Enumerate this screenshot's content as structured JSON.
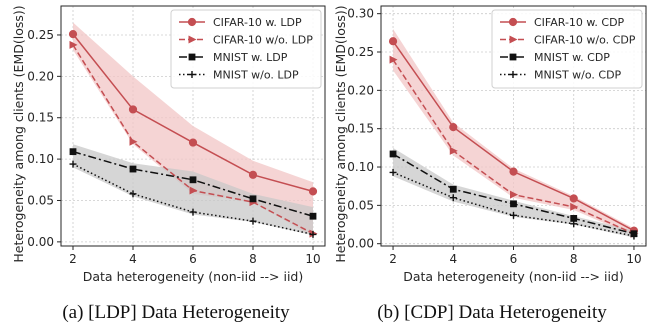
{
  "captions": [
    "(a) [LDP] Data Heterogeneity",
    "(b) [CDP] Data Heterogeneity"
  ],
  "colors": {
    "cifar": "#c44e52",
    "mnist": "#111111",
    "cifar_band": "#f2c5c6",
    "mnist_band": "#c8c8c8"
  },
  "chart_data": [
    {
      "type": "line",
      "xlabel": "Data heterogeneity (non-iid --> iid)",
      "ylabel": "Heterogeneity among clients (EMD(loss))",
      "x": [
        2,
        4,
        6,
        8,
        10
      ],
      "xlim": [
        1.6,
        10.4
      ],
      "ylim": [
        -0.005,
        0.285
      ],
      "yticks": [
        0.0,
        0.05,
        0.1,
        0.15,
        0.2,
        0.25
      ],
      "grid": true,
      "legend": "top-right",
      "series": [
        {
          "name": "CIFAR-10 w. LDP",
          "color": "#c44e52",
          "marker": "circle",
          "dash": "solid",
          "values": [
            0.251,
            0.16,
            0.12,
            0.081,
            0.061
          ],
          "band": {
            "upper": [
              0.265,
              0.2,
              0.14,
              0.098,
              0.072
            ],
            "lower": [
              0.232,
              0.118,
              0.058,
              0.048,
              0.006
            ]
          }
        },
        {
          "name": "CIFAR-10 w/o. LDP",
          "color": "#c44e52",
          "marker": "triangle-right",
          "dash": "dashed",
          "values": [
            0.238,
            0.121,
            0.062,
            0.048,
            0.01
          ]
        },
        {
          "name": "MNIST w. LDP",
          "color": "#111111",
          "marker": "square",
          "dash": "dashdot",
          "values": [
            0.109,
            0.088,
            0.075,
            0.052,
            0.031
          ],
          "band": {
            "upper": [
              0.118,
              0.095,
              0.085,
              0.058,
              0.042
            ],
            "lower": [
              0.09,
              0.055,
              0.033,
              0.024,
              0.008
            ]
          }
        },
        {
          "name": "MNIST w/o. LDP",
          "color": "#111111",
          "marker": "plus",
          "dash": "dotted",
          "values": [
            0.094,
            0.058,
            0.036,
            0.025,
            0.009
          ]
        }
      ]
    },
    {
      "type": "line",
      "xlabel": "Data heterogeneity (non-iid --> iid)",
      "ylabel": "Heterogeneity among clients (EMD(loss))",
      "x": [
        2,
        4,
        6,
        8,
        10
      ],
      "xlim": [
        1.6,
        10.4
      ],
      "ylim": [
        -0.003,
        0.31
      ],
      "yticks": [
        0.0,
        0.05,
        0.1,
        0.15,
        0.2,
        0.25,
        0.3
      ],
      "grid": true,
      "legend": "top-right",
      "series": [
        {
          "name": "CIFAR-10 w. CDP",
          "color": "#c44e52",
          "marker": "circle",
          "dash": "solid",
          "values": [
            0.264,
            0.152,
            0.094,
            0.059,
            0.017
          ],
          "band": {
            "upper": [
              0.28,
              0.158,
              0.098,
              0.062,
              0.02
            ],
            "lower": [
              0.226,
              0.115,
              0.06,
              0.044,
              0.01
            ]
          }
        },
        {
          "name": "CIFAR-10 w/o. CDP",
          "color": "#c44e52",
          "marker": "triangle-right",
          "dash": "dashed",
          "values": [
            0.24,
            0.121,
            0.064,
            0.048,
            0.013
          ]
        },
        {
          "name": "MNIST w. CDP",
          "color": "#111111",
          "marker": "square",
          "dash": "dashdot",
          "values": [
            0.117,
            0.071,
            0.052,
            0.033,
            0.013
          ],
          "band": {
            "upper": [
              0.125,
              0.077,
              0.056,
              0.036,
              0.017
            ],
            "lower": [
              0.088,
              0.055,
              0.035,
              0.025,
              0.008
            ]
          }
        },
        {
          "name": "MNIST w/o. CDP",
          "color": "#111111",
          "marker": "plus",
          "dash": "dotted",
          "values": [
            0.093,
            0.06,
            0.037,
            0.026,
            0.01
          ]
        }
      ]
    }
  ]
}
